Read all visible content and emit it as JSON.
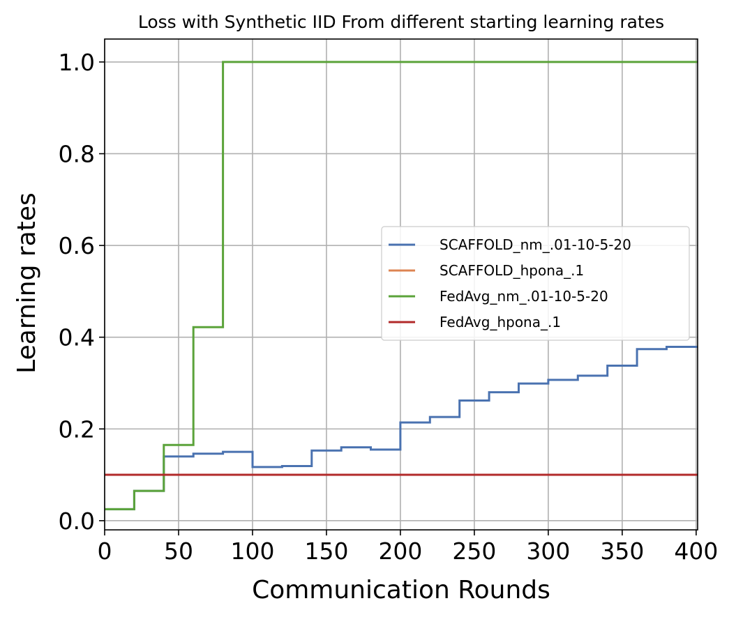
{
  "chart_data": {
    "type": "line",
    "title": "Loss with Synthetic IID From different starting learning rates",
    "xlabel": "Communication Rounds",
    "ylabel": "Learning rates",
    "xlim": [
      0,
      401
    ],
    "ylim": [
      -0.02,
      1.05
    ],
    "xticks": [
      0,
      50,
      100,
      150,
      200,
      250,
      300,
      350,
      400
    ],
    "xtick_labels": [
      "0",
      "50",
      "100",
      "150",
      "200",
      "250",
      "300",
      "350",
      "400"
    ],
    "yticks": [
      0.0,
      0.2,
      0.4,
      0.6,
      0.8,
      1.0
    ],
    "ytick_labels": [
      "0.0",
      "0.2",
      "0.4",
      "0.6",
      "0.8",
      "1.0"
    ],
    "grid": true,
    "legend_position": "center-right",
    "series": [
      {
        "name": "SCAFFOLD_nm_.01-10-5-20",
        "color": "#4a72b0",
        "step": true,
        "x": [
          0,
          20,
          40,
          60,
          80,
          100,
          120,
          140,
          160,
          180,
          200,
          220,
          240,
          260,
          280,
          300,
          320,
          340,
          360,
          380,
          401
        ],
        "y": [
          0.025,
          0.065,
          0.14,
          0.146,
          0.15,
          0.117,
          0.119,
          0.153,
          0.16,
          0.155,
          0.214,
          0.226,
          0.262,
          0.28,
          0.299,
          0.307,
          0.316,
          0.338,
          0.374,
          0.379,
          0.379
        ]
      },
      {
        "name": "SCAFFOLD_hpona_.1",
        "color": "#dd8452",
        "step": false,
        "x": [
          0,
          401
        ],
        "y": [
          0.1,
          0.1
        ]
      },
      {
        "name": "FedAvg_nm_.01-10-5-20",
        "color": "#5ba33a",
        "step": true,
        "x": [
          0,
          20,
          40,
          60,
          80,
          401
        ],
        "y": [
          0.025,
          0.065,
          0.165,
          0.422,
          1.0,
          1.0
        ]
      },
      {
        "name": "FedAvg_hpona_.1",
        "color": "#b22a2a",
        "step": false,
        "x": [
          0,
          401
        ],
        "y": [
          0.1,
          0.1
        ]
      }
    ]
  }
}
